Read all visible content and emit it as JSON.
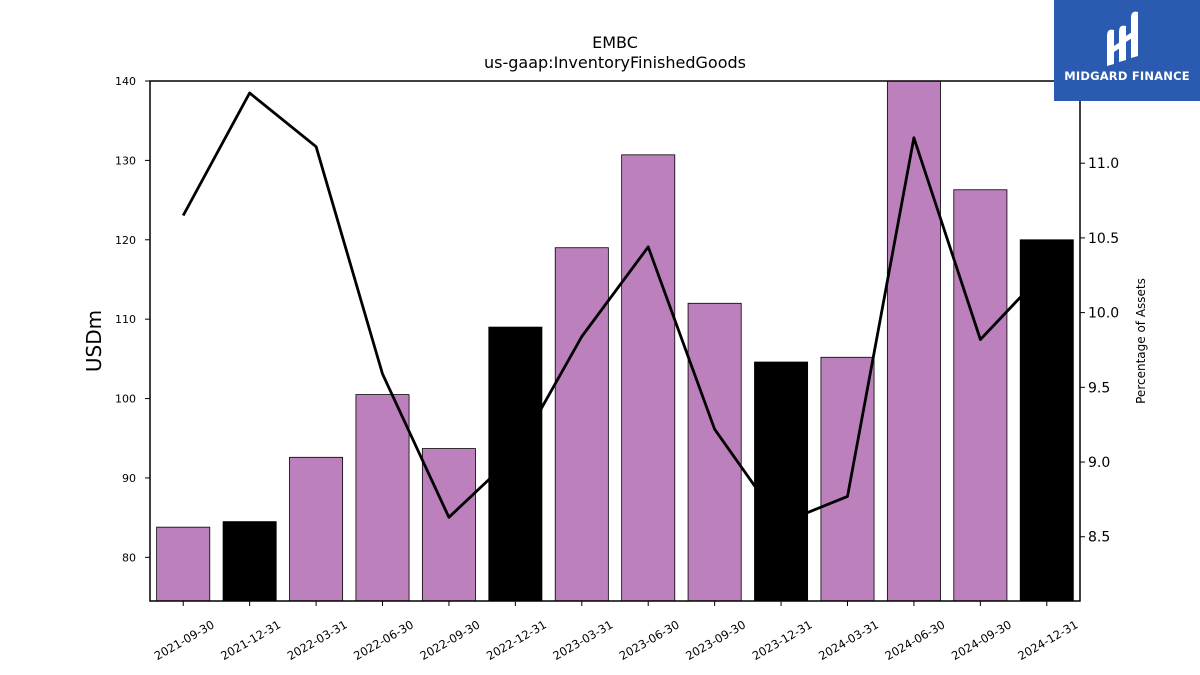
{
  "chart_data": {
    "type": "bar",
    "title": "EMBC",
    "subtitle": "us-gaap:InventoryFinishedGoods",
    "ylabel": "USDm",
    "y2label": "Percentage of Assets",
    "categories": [
      "2021-09-30",
      "2021-12-31",
      "2022-03-31",
      "2022-06-30",
      "2022-09-30",
      "2022-12-31",
      "2023-03-31",
      "2023-06-30",
      "2023-09-30",
      "2023-12-31",
      "2024-03-31",
      "2024-06-30",
      "2024-09-30",
      "2024-12-31"
    ],
    "bars": {
      "values": [
        83.8,
        84.5,
        92.6,
        100.5,
        93.7,
        109.0,
        119.0,
        130.7,
        112.0,
        104.6,
        105.2,
        140.0,
        126.3,
        120.0
      ],
      "colors": [
        "#bc80bd",
        "#000000",
        "#bc80bd",
        "#bc80bd",
        "#bc80bd",
        "#000000",
        "#bc80bd",
        "#bc80bd",
        "#bc80bd",
        "#000000",
        "#bc80bd",
        "#bc80bd",
        "#bc80bd",
        "#000000"
      ]
    },
    "line": {
      "values": [
        10.65,
        11.47,
        11.11,
        9.59,
        8.63,
        9.05,
        9.84,
        10.44,
        9.22,
        8.59,
        8.77,
        11.17,
        9.82,
        10.29
      ],
      "color": "#000000"
    },
    "ylim": [
      74.5,
      140
    ],
    "yticks": [
      80,
      90,
      100,
      110,
      120,
      130,
      140
    ],
    "y2lim": [
      8.07,
      11.55
    ],
    "y2ticks": [
      "8.5",
      "9.0",
      "9.5",
      "10.0",
      "10.5",
      "11.0"
    ],
    "grid": false
  },
  "logo": {
    "text": "MIDGARD FINANCE",
    "color": "#2b5bb0"
  }
}
